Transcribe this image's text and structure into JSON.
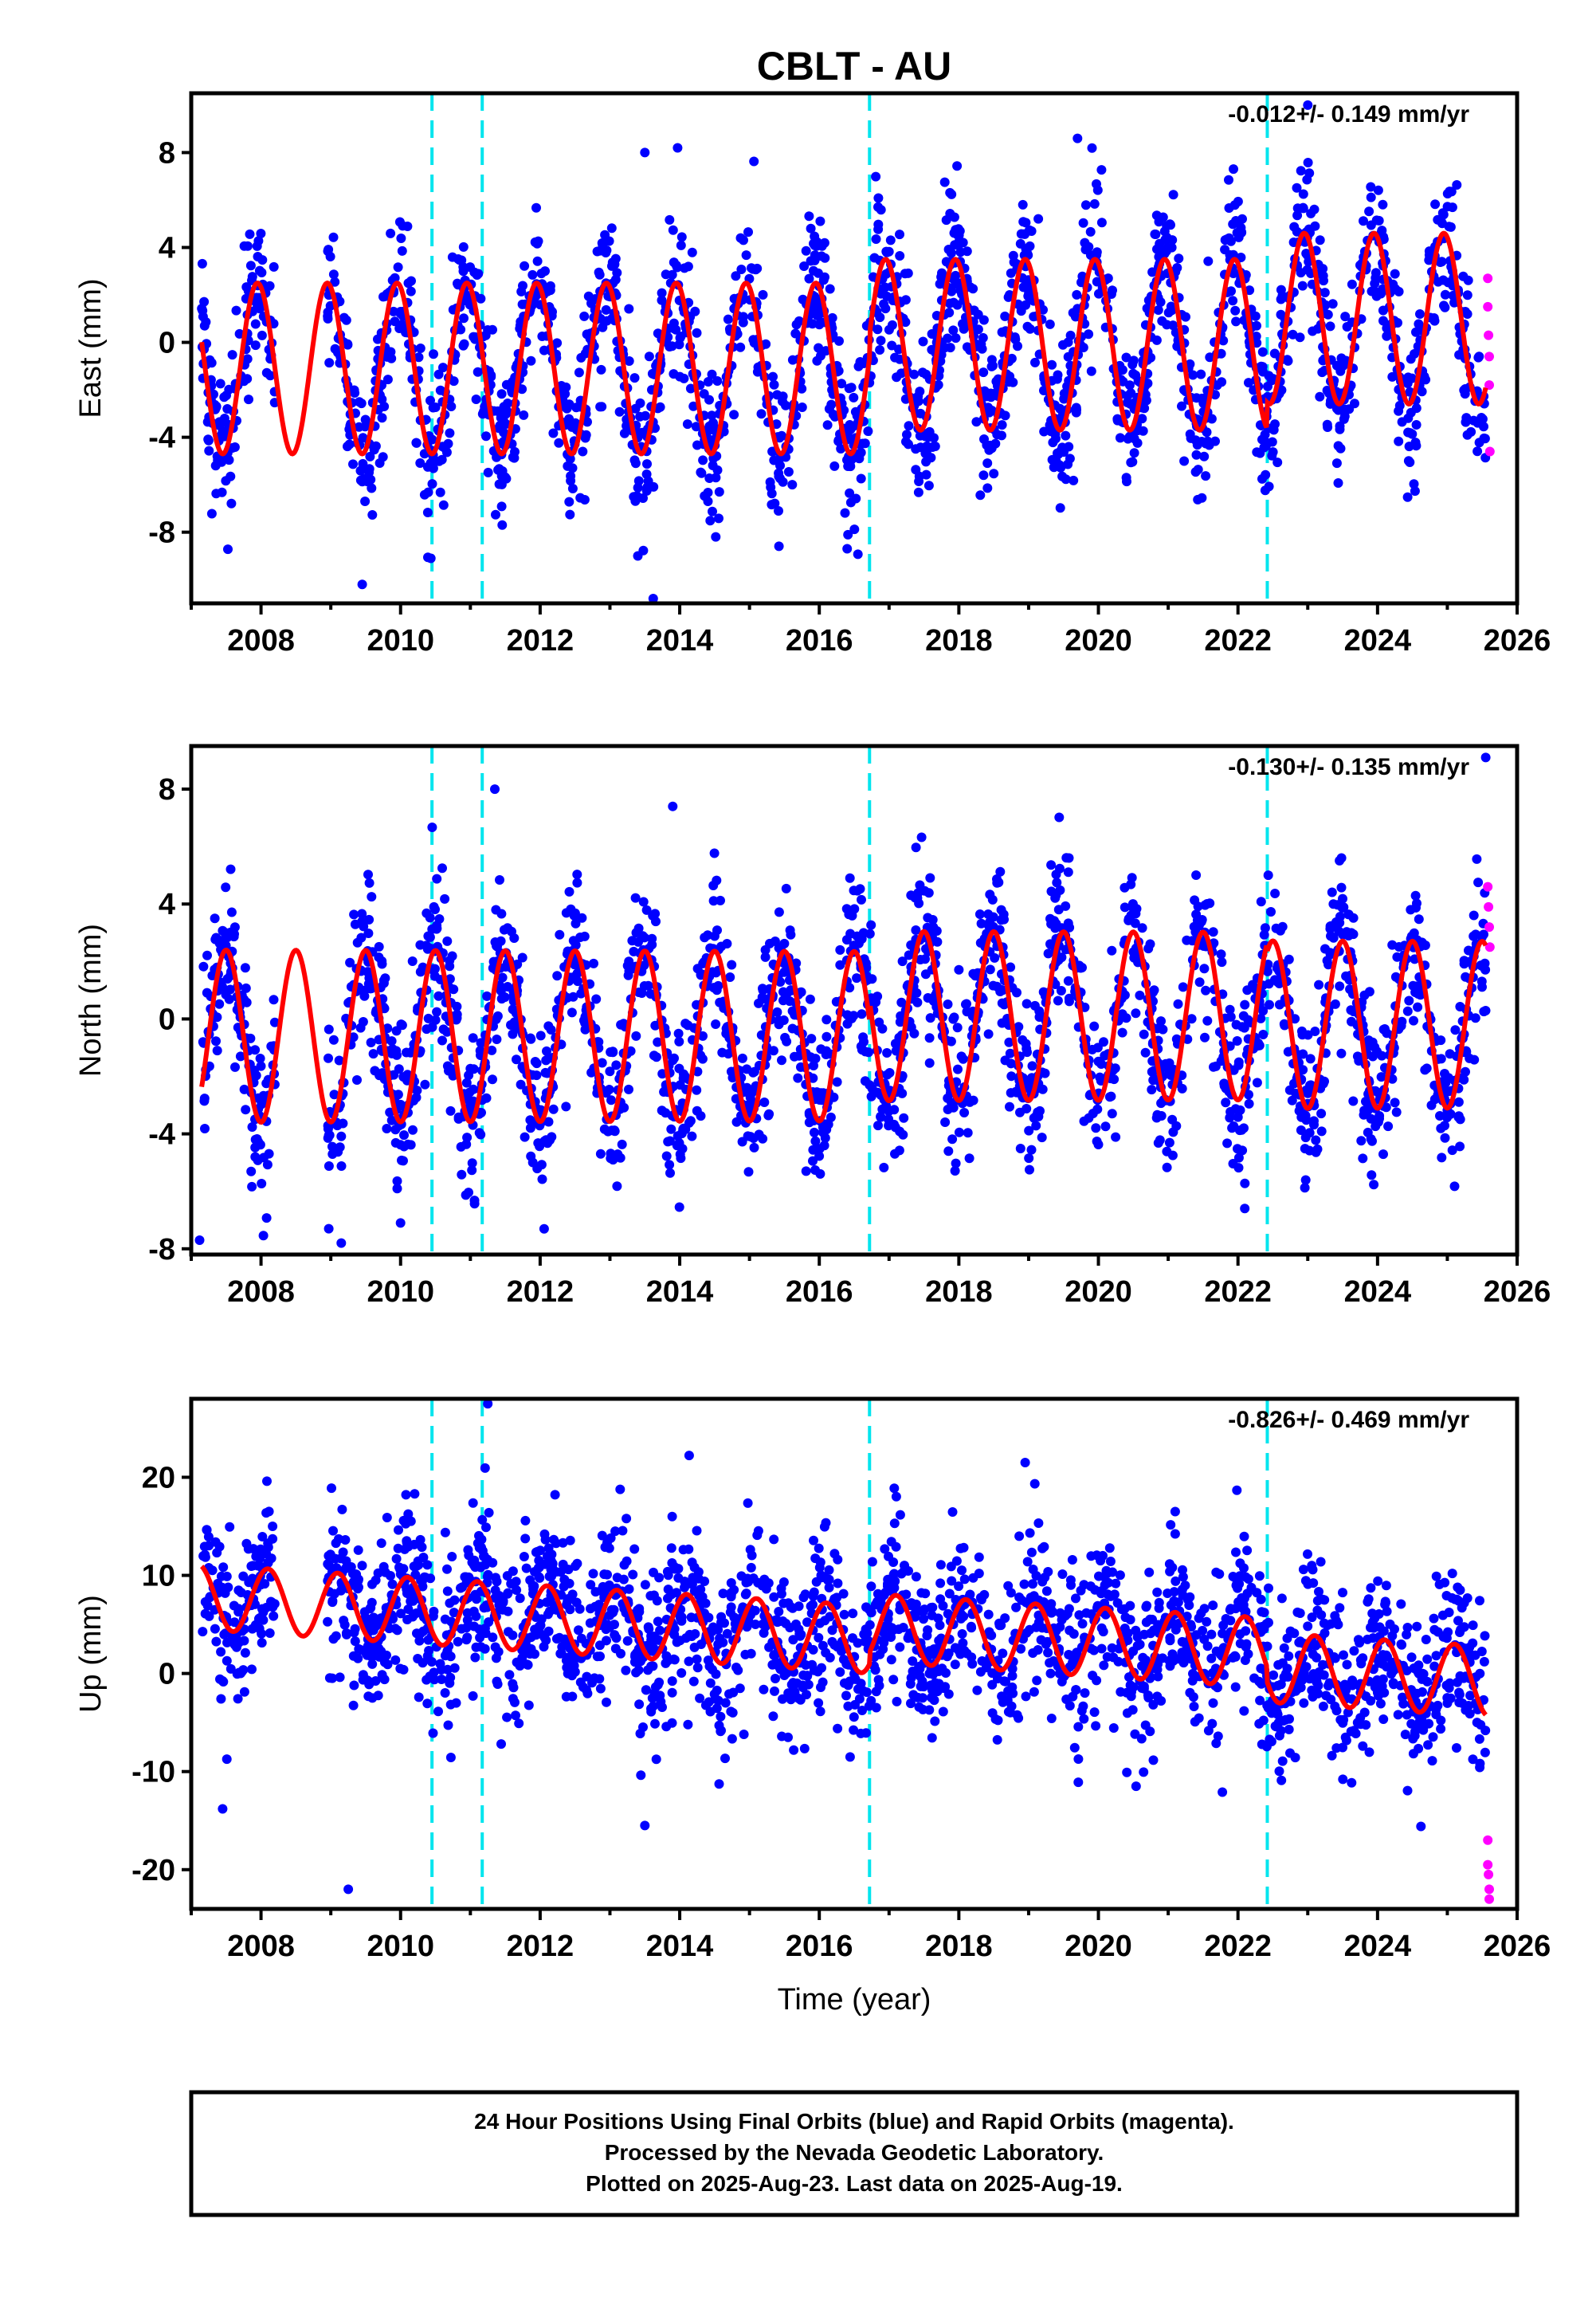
{
  "title": "CBLT - AU",
  "xlabel": "Time (year)",
  "xticks": [
    "2008",
    "2010",
    "2012",
    "2014",
    "2016",
    "2018",
    "2020",
    "2022",
    "2024",
    "2026"
  ],
  "colors": {
    "final_orbits": "#0000ff",
    "rapid_orbits": "#ff00ff",
    "model": "#ff0000",
    "event": "#00e5ee"
  },
  "legend_lines": [
    "24 Hour Positions Using Final Orbits (blue) and Rapid Orbits (magenta).",
    "Processed by the Nevada Geodetic Laboratory.",
    "Plotted on 2025-Aug-23. Last data on 2025-Aug-19."
  ],
  "chart_data": [
    {
      "type": "scatter",
      "component": "East",
      "ylabel": "East (mm)",
      "rate_text": "-0.012+/- 0.149 mm/yr",
      "xlim": [
        2007.0,
        2026.0
      ],
      "ylim": [
        -11,
        10.5
      ],
      "yticks": [
        "8",
        "4",
        "0",
        "-4",
        "-8"
      ],
      "ytick_values": [
        8,
        4,
        0,
        -4,
        -8
      ],
      "event_lines_x": [
        2010.45,
        2011.17,
        2016.72,
        2022.42
      ],
      "data_range_x": [
        2007.15,
        2025.55
      ],
      "model": {
        "offset": -1.1,
        "amplitude_start": 3.6,
        "amplitude_end": 3.6,
        "phase_peak_year_fraction": 0.95,
        "trend_mm_per_yr": 0.0,
        "step_after_2016_72": 1.0,
        "step_after_2022_42": 1.1
      },
      "scatter_sigma": 1.6,
      "rapid_points": [
        {
          "x": 2025.58,
          "y": 2.7
        },
        {
          "x": 2025.58,
          "y": 1.5
        },
        {
          "x": 2025.59,
          "y": 0.3
        },
        {
          "x": 2025.6,
          "y": -0.6
        },
        {
          "x": 2025.6,
          "y": -1.8
        },
        {
          "x": 2025.61,
          "y": -4.6
        }
      ],
      "outliers": [
        {
          "x": 2009.45,
          "y": -10.2
        },
        {
          "x": 2013.4,
          "y": -9.0
        },
        {
          "x": 2013.62,
          "y": -10.8
        },
        {
          "x": 2013.5,
          "y": 8.0
        },
        {
          "x": 2013.97,
          "y": 8.2
        },
        {
          "x": 2019.7,
          "y": 8.6
        },
        {
          "x": 2023.0,
          "y": 10.0
        },
        {
          "x": 2016.4,
          "y": -8.7
        }
      ]
    },
    {
      "type": "scatter",
      "component": "North",
      "ylabel": "North (mm)",
      "rate_text": "-0.130+/- 0.135 mm/yr",
      "xlim": [
        2007.0,
        2026.0
      ],
      "ylim": [
        -8.2,
        9.5
      ],
      "yticks": [
        "8",
        "4",
        "0",
        "-4",
        "-8"
      ],
      "ytick_values": [
        8,
        4,
        0,
        -4,
        -8
      ],
      "event_lines_x": [
        2010.45,
        2011.17,
        2016.72,
        2022.42
      ],
      "data_range_x": [
        2007.15,
        2025.55
      ],
      "model": {
        "offset": -0.6,
        "amplitude_start": 3.0,
        "amplitude_end": 2.9,
        "phase_peak_year_fraction": 0.5,
        "trend_mm_per_yr": 0.0,
        "step_after_2016_72": 0.7,
        "step_after_2022_42": -0.3
      },
      "scatter_sigma": 1.4,
      "rapid_points": [
        {
          "x": 2025.58,
          "y": 4.6
        },
        {
          "x": 2025.59,
          "y": 3.9
        },
        {
          "x": 2025.6,
          "y": 3.2
        },
        {
          "x": 2025.61,
          "y": 2.5
        }
      ],
      "outliers": [
        {
          "x": 2011.35,
          "y": 8.0
        },
        {
          "x": 2025.55,
          "y": 9.1
        },
        {
          "x": 2007.12,
          "y": -7.7
        },
        {
          "x": 2009.15,
          "y": -7.8
        },
        {
          "x": 2010.0,
          "y": -7.1
        },
        {
          "x": 2013.9,
          "y": 7.4
        }
      ]
    },
    {
      "type": "scatter",
      "component": "Up",
      "ylabel": "Up (mm)",
      "rate_text": "-0.826+/- 0.469 mm/yr",
      "xlim": [
        2007.0,
        2026.0
      ],
      "ylim": [
        -24,
        28
      ],
      "yticks": [
        "20",
        "10",
        "0",
        "-10",
        "-20"
      ],
      "ytick_values": [
        20,
        10,
        0,
        -10,
        -20
      ],
      "event_lines_x": [
        2010.45,
        2011.17,
        2016.72,
        2022.42
      ],
      "data_range_x": [
        2007.15,
        2025.55
      ],
      "model": {
        "offset": 3.8,
        "amplitude_start": 3.3,
        "amplitude_end": 3.6,
        "phase_peak_year_fraction": 0.1,
        "trend_mm_per_yr": -0.45,
        "step_after_2016_72": 1.2,
        "step_after_2022_42": -1.5
      },
      "scatter_sigma": 4.2,
      "rapid_points": [
        {
          "x": 2025.58,
          "y": -17.0
        },
        {
          "x": 2025.58,
          "y": -19.5
        },
        {
          "x": 2025.59,
          "y": -20.5
        },
        {
          "x": 2025.6,
          "y": -22.0
        },
        {
          "x": 2025.6,
          "y": -23.0
        }
      ],
      "outliers": [
        {
          "x": 2011.25,
          "y": 27.5
        },
        {
          "x": 2009.25,
          "y": -22.0
        },
        {
          "x": 2007.45,
          "y": -13.8
        },
        {
          "x": 2018.95,
          "y": 21.5
        },
        {
          "x": 2021.1,
          "y": 16.5
        },
        {
          "x": 2013.5,
          "y": -15.5
        }
      ]
    }
  ]
}
